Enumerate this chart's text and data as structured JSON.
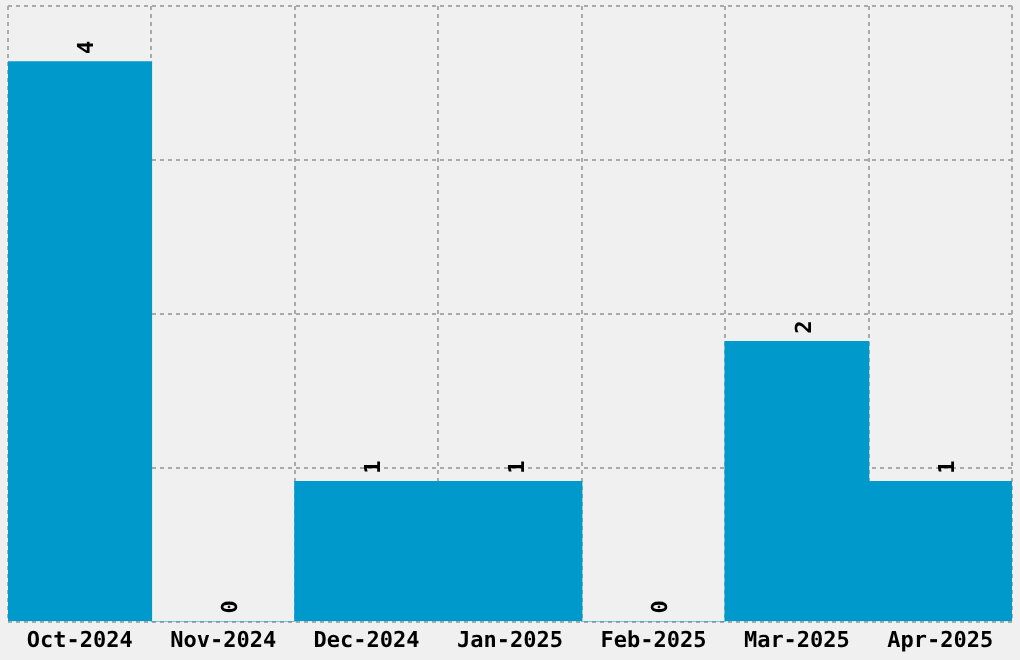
{
  "chart_data": {
    "type": "bar",
    "categories": [
      "Oct-2024",
      "Nov-2024",
      "Dec-2024",
      "Jan-2025",
      "Feb-2025",
      "Mar-2025",
      "Apr-2025"
    ],
    "values": [
      4,
      0,
      1,
      1,
      0,
      2,
      1
    ],
    "color": "#0099cc",
    "data_labels": true,
    "ylim": [
      0,
      4.4
    ],
    "yticks": [
      {
        "value": 0,
        "label": null
      },
      {
        "value": 1.1,
        "label": null
      },
      {
        "value": 2.2,
        "label": null
      },
      {
        "value": 3.3,
        "label": null
      },
      {
        "value": 4.4,
        "label": null
      }
    ],
    "grid": true,
    "tick_labels": "x"
  }
}
